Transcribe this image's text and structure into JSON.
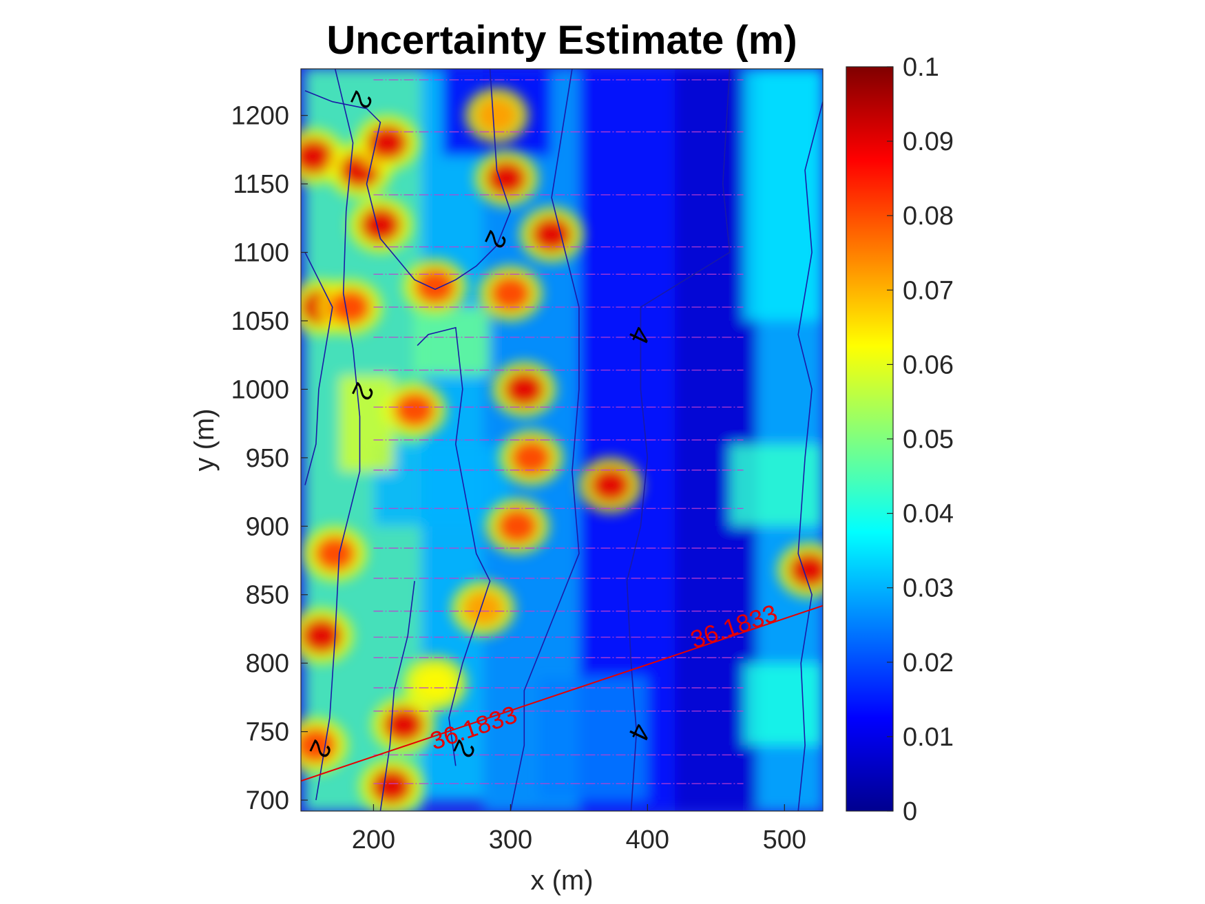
{
  "chart_data": {
    "type": "heatmap",
    "title": "Uncertainty Estimate (m)",
    "xlabel": "x (m)",
    "ylabel": "y (m)",
    "xlim": [
      147,
      528
    ],
    "ylim": [
      692,
      1234
    ],
    "x_ticks": [
      200,
      300,
      400,
      500
    ],
    "y_ticks": [
      700,
      750,
      800,
      850,
      900,
      950,
      1000,
      1050,
      1100,
      1150,
      1200
    ],
    "colorbar": {
      "colormap": "jet",
      "clim": [
        0,
        0.1
      ],
      "ticks": [
        0,
        0.01,
        0.02,
        0.03,
        0.04,
        0.05,
        0.06,
        0.07,
        0.08,
        0.09,
        0.1
      ],
      "tick_labels": [
        "0",
        "0.01",
        "0.02",
        "0.03",
        "0.04",
        "0.05",
        "0.06",
        "0.07",
        "0.08",
        "0.09",
        "0.1"
      ]
    },
    "hotspots": [
      {
        "x": 156,
        "y": 1170,
        "value": 0.1
      },
      {
        "x": 162,
        "y": 1060,
        "value": 0.1
      },
      {
        "x": 162,
        "y": 820,
        "value": 0.1
      },
      {
        "x": 158,
        "y": 740,
        "value": 0.09
      },
      {
        "x": 190,
        "y": 1160,
        "value": 0.1
      },
      {
        "x": 210,
        "y": 1180,
        "value": 0.1
      },
      {
        "x": 205,
        "y": 1120,
        "value": 0.1
      },
      {
        "x": 183,
        "y": 1060,
        "value": 0.09
      },
      {
        "x": 172,
        "y": 880,
        "value": 0.09
      },
      {
        "x": 245,
        "y": 1075,
        "value": 0.09
      },
      {
        "x": 300,
        "y": 1070,
        "value": 0.09
      },
      {
        "x": 310,
        "y": 1000,
        "value": 0.1
      },
      {
        "x": 315,
        "y": 950,
        "value": 0.09
      },
      {
        "x": 305,
        "y": 900,
        "value": 0.09
      },
      {
        "x": 280,
        "y": 840,
        "value": 0.08
      },
      {
        "x": 230,
        "y": 985,
        "value": 0.09
      },
      {
        "x": 222,
        "y": 755,
        "value": 0.1
      },
      {
        "x": 213,
        "y": 710,
        "value": 0.1
      },
      {
        "x": 290,
        "y": 1200,
        "value": 0.08
      },
      {
        "x": 297,
        "y": 1154,
        "value": 0.1
      },
      {
        "x": 330,
        "y": 1113,
        "value": 0.1
      },
      {
        "x": 373,
        "y": 930,
        "value": 0.1
      },
      {
        "x": 518,
        "y": 868,
        "value": 0.1
      },
      {
        "x": 245,
        "y": 785,
        "value": 0.07
      }
    ],
    "contours": [
      {
        "level": 2,
        "label": "2",
        "label_positions": [
          [
            190,
            1212
          ],
          [
            288,
            1110
          ],
          [
            191,
            999
          ],
          [
            160,
            738
          ],
          [
            265,
            738
          ]
        ]
      },
      {
        "level": 4,
        "label": "4",
        "label_positions": [
          [
            393,
            1040
          ],
          [
            393,
            750
          ]
        ]
      }
    ],
    "survey_lines_y": [
      1226,
      1188,
      1142,
      1104,
      1084,
      1060,
      1038,
      1014,
      987,
      963,
      941,
      913,
      884,
      862,
      838,
      819,
      804,
      782,
      765,
      733,
      712
    ],
    "reference_line": {
      "label": "36.1833",
      "color": "#e60000",
      "points": [
        [
          147,
          714
        ],
        [
          528,
          842
        ]
      ],
      "label_positions": [
        [
          465,
          821
        ],
        [
          275,
          747
        ]
      ]
    }
  }
}
